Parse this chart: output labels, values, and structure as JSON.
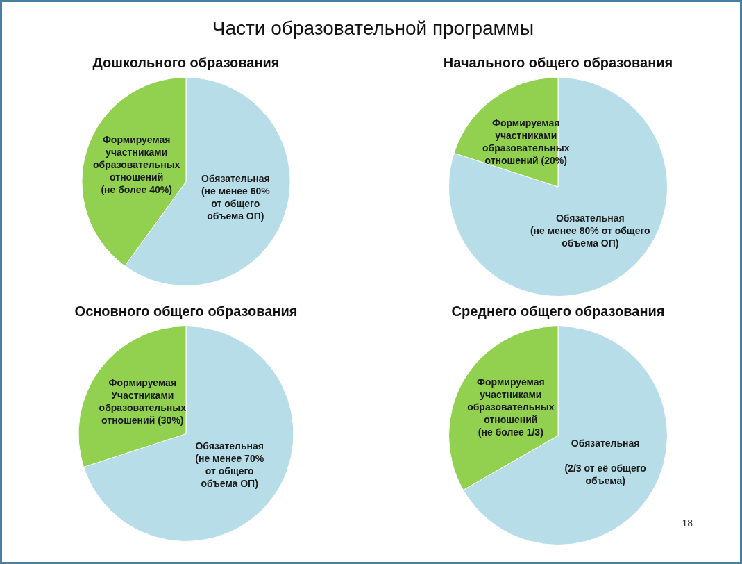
{
  "chart_data": [
    {
      "type": "pie",
      "title": "Дошкольного образования",
      "annotations": [
        "Части образовательной программы"
      ],
      "categories": [
        "Обязательная\n(не менее 60%\nот общего\nобъема ОП)",
        "Формируемая\nучастниками\nобразовательных\nотношений\n(не более 40%)"
      ],
      "values": [
        60,
        40
      ],
      "colors": [
        "#b7dde8",
        "#92d050"
      ],
      "legend": false
    },
    {
      "type": "pie",
      "title": "Начального общего образования",
      "categories": [
        "Обязательная\n(не менее 80% от общего\nобъема ОП)",
        "Формируемая\nучастниками\nобразовательных\nотношений (20%)"
      ],
      "values": [
        80,
        20
      ],
      "colors": [
        "#b7dde8",
        "#92d050"
      ],
      "legend": false
    },
    {
      "type": "pie",
      "title": "Основного общего образования",
      "categories": [
        "Обязательная\n(не менее 70%\nот общего\nобъема ОП)",
        "Формируемая\nУчастниками\nобразовательных\nотношений (30%)"
      ],
      "values": [
        70,
        30
      ],
      "colors": [
        "#b7dde8",
        "#92d050"
      ],
      "legend": false
    },
    {
      "type": "pie",
      "title": "Среднего общего образования",
      "annotations": [
        "18"
      ],
      "categories": [
        "Обязательная\n\n(2/3 от её общего\nобъема)",
        "Формируемая\nучастниками\nобразовательных\nотношений\n(не более 1/3)"
      ],
      "values": [
        66.7,
        33.3
      ],
      "colors": [
        "#b7dde8",
        "#92d050"
      ],
      "legend": false
    }
  ]
}
